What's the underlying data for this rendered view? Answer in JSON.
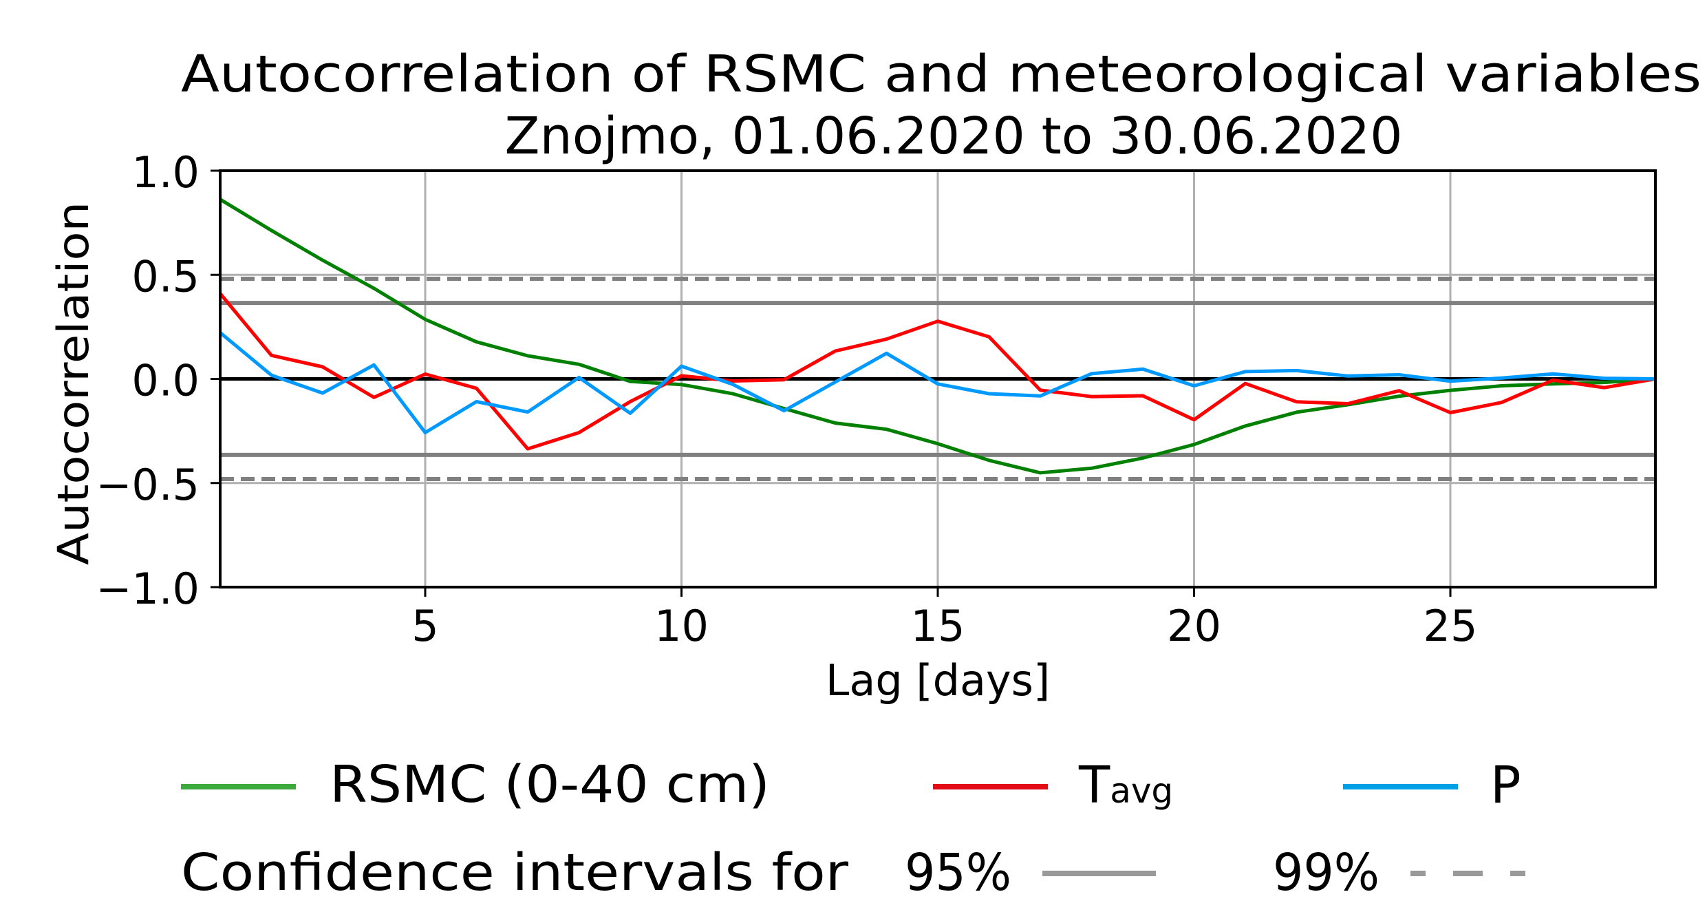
{
  "chart_data": {
    "type": "line",
    "title": "Autocorrelation of RSMC and meteorological variables",
    "subtitle": "Znojmo, 01.06.2020 to 30.06.2020",
    "xlabel": "Lag [days]",
    "ylabel": "Autocorrelation",
    "xlim": [
      1,
      29
    ],
    "ylim": [
      -1.0,
      1.0
    ],
    "x_ticks": [
      5,
      10,
      15,
      20,
      25
    ],
    "x_tick_labels": [
      "5",
      "10",
      "15",
      "20",
      "25"
    ],
    "y_ticks": [
      1.0,
      0.5,
      0.0,
      -0.5,
      -1.0
    ],
    "y_tick_labels": [
      "1.0",
      "0.5",
      "0.0",
      "−0.5",
      "−1.0"
    ],
    "grid": "vertical",
    "x": [
      1,
      2,
      3,
      4,
      5,
      6,
      7,
      8,
      9,
      10,
      11,
      12,
      13,
      14,
      15,
      16,
      17,
      18,
      19,
      20,
      21,
      22,
      23,
      24,
      25,
      26,
      27,
      28,
      29
    ],
    "series": [
      {
        "name": "RSMC (0-40 cm)",
        "key": "rsmc",
        "color": "#008000",
        "legend_color": "#3CAA3C",
        "values": [
          0.862,
          0.713,
          0.57,
          0.435,
          0.286,
          0.178,
          0.111,
          0.07,
          -0.012,
          -0.027,
          -0.071,
          -0.142,
          -0.212,
          -0.242,
          -0.311,
          -0.391,
          -0.451,
          -0.429,
          -0.38,
          -0.315,
          -0.226,
          -0.16,
          -0.124,
          -0.083,
          -0.055,
          -0.033,
          -0.024,
          -0.017,
          0.0
        ]
      },
      {
        "name": "Tavg",
        "key": "tavg",
        "color": "#FF0000",
        "legend_color": "#E30B17",
        "values": [
          0.41,
          0.113,
          0.058,
          -0.089,
          0.023,
          -0.045,
          -0.336,
          -0.258,
          -0.109,
          0.015,
          -0.01,
          -0.004,
          0.134,
          0.191,
          0.277,
          0.202,
          -0.054,
          -0.085,
          -0.081,
          -0.196,
          -0.022,
          -0.11,
          -0.119,
          -0.057,
          -0.162,
          -0.113,
          -0.006,
          -0.042,
          0.0
        ]
      },
      {
        "name": "P",
        "key": "p",
        "color": "#0099FF",
        "legend_color": "#00A0E6",
        "values": [
          0.222,
          0.018,
          -0.068,
          0.067,
          -0.258,
          -0.109,
          -0.159,
          0.007,
          -0.165,
          0.061,
          -0.026,
          -0.153,
          -0.015,
          0.123,
          -0.024,
          -0.071,
          -0.082,
          0.025,
          0.047,
          -0.033,
          0.035,
          0.04,
          0.014,
          0.02,
          -0.011,
          0.004,
          0.024,
          0.003,
          0.0
        ]
      }
    ],
    "reference_lines": [
      {
        "name": "zero",
        "value": 0.0,
        "color": "#000000",
        "style": "solid"
      },
      {
        "name": "ci95-upper",
        "value": 0.365,
        "color": "#808080",
        "style": "solid"
      },
      {
        "name": "ci95-lower",
        "value": -0.365,
        "color": "#808080",
        "style": "solid"
      },
      {
        "name": "ci99-upper",
        "value": 0.481,
        "color": "#808080",
        "style": "dashed"
      },
      {
        "name": "ci99-lower",
        "value": -0.481,
        "color": "#808080",
        "style": "dashed"
      }
    ],
    "legend": {
      "placement": "bottom",
      "series_labels": {
        "rsmc": "RSMC (0-40 cm)",
        "tavg_main": "T",
        "tavg_sub": "avg",
        "p": "P"
      },
      "ci_caption": "Confidence intervals for",
      "ci95_label": "95%",
      "ci99_label": "99%",
      "ci_color": "#999999"
    }
  }
}
